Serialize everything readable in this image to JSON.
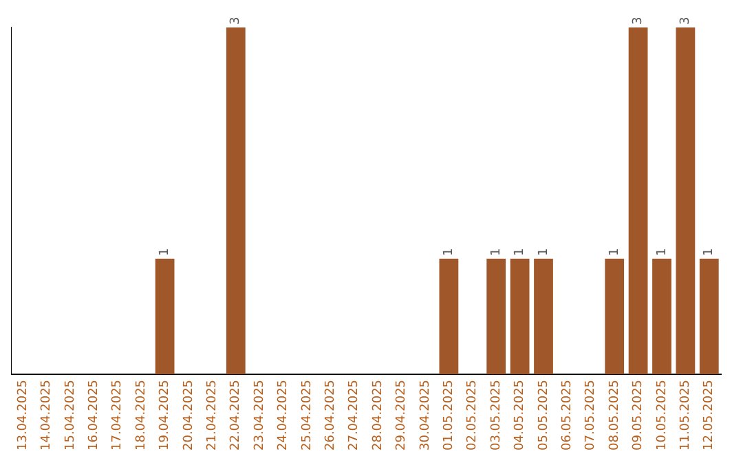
{
  "chart_data": {
    "type": "bar",
    "categories": [
      "13.04.2025",
      "14.04.2025",
      "15.04.2025",
      "16.04.2025",
      "17.04.2025",
      "18.04.2025",
      "19.04.2025",
      "20.04.2025",
      "21.04.2025",
      "22.04.2025",
      "23.04.2025",
      "24.04.2025",
      "25.04.2025",
      "26.04.2025",
      "27.04.2025",
      "28.04.2025",
      "29.04.2025",
      "30.04.2025",
      "01.05.2025",
      "02.05.2025",
      "03.05.2025",
      "04.05.2025",
      "05.05.2025",
      "06.05.2025",
      "07.05.2025",
      "08.05.2025",
      "09.05.2025",
      "10.05.2025",
      "11.05.2025",
      "12.05.2025"
    ],
    "values": [
      0,
      0,
      0,
      0,
      0,
      0,
      1,
      0,
      0,
      3,
      0,
      0,
      0,
      0,
      0,
      0,
      0,
      0,
      1,
      0,
      1,
      1,
      1,
      0,
      0,
      1,
      3,
      1,
      3,
      1
    ],
    "value_labels": [
      null,
      null,
      null,
      null,
      null,
      null,
      "1",
      null,
      null,
      "3",
      null,
      null,
      null,
      null,
      null,
      null,
      null,
      null,
      "1",
      null,
      "1",
      "1",
      "1",
      null,
      null,
      "1",
      "3",
      "1",
      "3",
      "1"
    ],
    "color": "#a0582a",
    "grid": false,
    "legend": false
  }
}
